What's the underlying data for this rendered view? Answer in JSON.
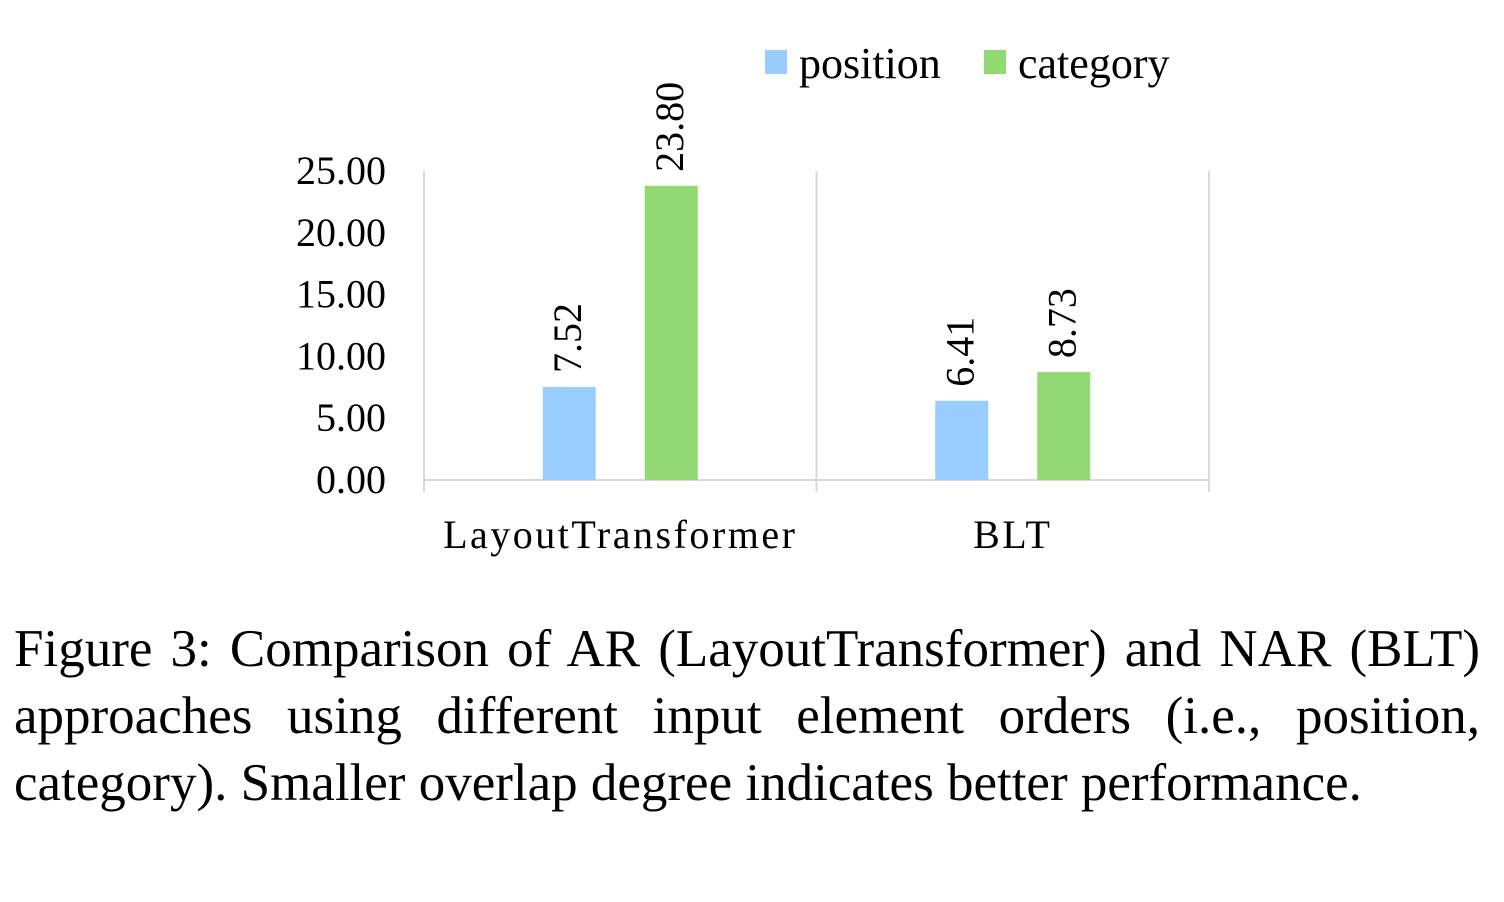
{
  "chart_data": {
    "type": "bar",
    "categories": [
      "LayoutTransformer",
      "BLT"
    ],
    "series": [
      {
        "name": "position",
        "values": [
          7.52,
          6.41
        ],
        "labels": [
          "7.52",
          "6.41"
        ],
        "color": "#99ccff"
      },
      {
        "name": "category",
        "values": [
          23.8,
          8.73
        ],
        "labels": [
          "23.80",
          "8.73"
        ],
        "color": "#92d873"
      }
    ],
    "ylim": [
      0,
      25
    ],
    "yticks": [
      0,
      5,
      10,
      15,
      20,
      25
    ],
    "ytick_labels": [
      "0.00",
      "5.00",
      "10.00",
      "15.00",
      "20.00",
      "25.00"
    ],
    "grid": false,
    "legend_position": "top-right"
  },
  "caption": "Figure 3: Comparison of AR (LayoutTransformer) and NAR (BLT) approaches using different input element orders (i.e., position, category). Smaller overlap degree indicates better performance."
}
